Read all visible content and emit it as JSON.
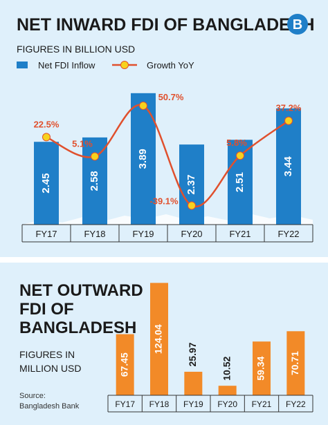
{
  "inward": {
    "title": "NET INWARD FDI OF BANGLADESH",
    "subtitle": "FIGURES IN BILLION USD",
    "legend_bar": "Net FDI Inflow",
    "legend_line": "Growth YoY",
    "logo_letter": "B"
  },
  "outward": {
    "title_line1": "NET OUTWARD",
    "title_line2": "FDI OF",
    "title_line3": "BANGLADESH",
    "subtitle_line1": "FIGURES IN",
    "subtitle_line2": "MILLION USD",
    "source_line1": "Source:",
    "source_line2": "Bangladesh Bank"
  },
  "colors": {
    "background": "#dff0fb",
    "bar_blue": "#1f7fc8",
    "line_red": "#e0502d",
    "marker_yellow": "#f7d21e",
    "bar_orange": "#f28a28",
    "title": "#1a1a1a",
    "growth_label": "#e0502d"
  },
  "chart_data": [
    {
      "type": "bar",
      "categories": [
        "FY17",
        "FY18",
        "FY19",
        "FY20",
        "FY21",
        "FY22"
      ],
      "series": [
        {
          "name": "Net FDI Inflow",
          "type": "bar",
          "values": [
            2.45,
            2.58,
            3.89,
            2.37,
            2.51,
            3.44
          ],
          "value_labels": [
            "2.45",
            "2.58",
            "3.89",
            "2.37",
            "2.51",
            "3.44"
          ]
        },
        {
          "name": "Growth YoY",
          "type": "line",
          "values": [
            22.5,
            5.1,
            50.7,
            -39.1,
            5.8,
            37.2
          ],
          "value_labels": [
            "22.5%",
            "5.1%",
            "50.7%",
            "-39.1%",
            "5.8%",
            "37.2%"
          ]
        }
      ],
      "title": "NET INWARD FDI OF BANGLADESH",
      "ylabel": "FIGURES IN BILLION USD",
      "ylim": [
        0,
        4.5
      ],
      "growth_lim": [
        -50,
        65
      ],
      "grid": false,
      "legend": "top-left"
    },
    {
      "type": "bar",
      "categories": [
        "FY17",
        "FY18",
        "FY19",
        "FY20",
        "FY21",
        "FY22"
      ],
      "values": [
        67.45,
        124.04,
        25.97,
        10.52,
        59.34,
        70.71
      ],
      "value_labels": [
        "67.45",
        "124.04",
        "25.97",
        "10.52",
        "59.34",
        "70.71"
      ],
      "title": "NET OUTWARD FDI OF BANGLADESH",
      "ylabel": "FIGURES IN MILLION USD",
      "ylim": [
        0,
        135
      ],
      "grid": false
    }
  ]
}
